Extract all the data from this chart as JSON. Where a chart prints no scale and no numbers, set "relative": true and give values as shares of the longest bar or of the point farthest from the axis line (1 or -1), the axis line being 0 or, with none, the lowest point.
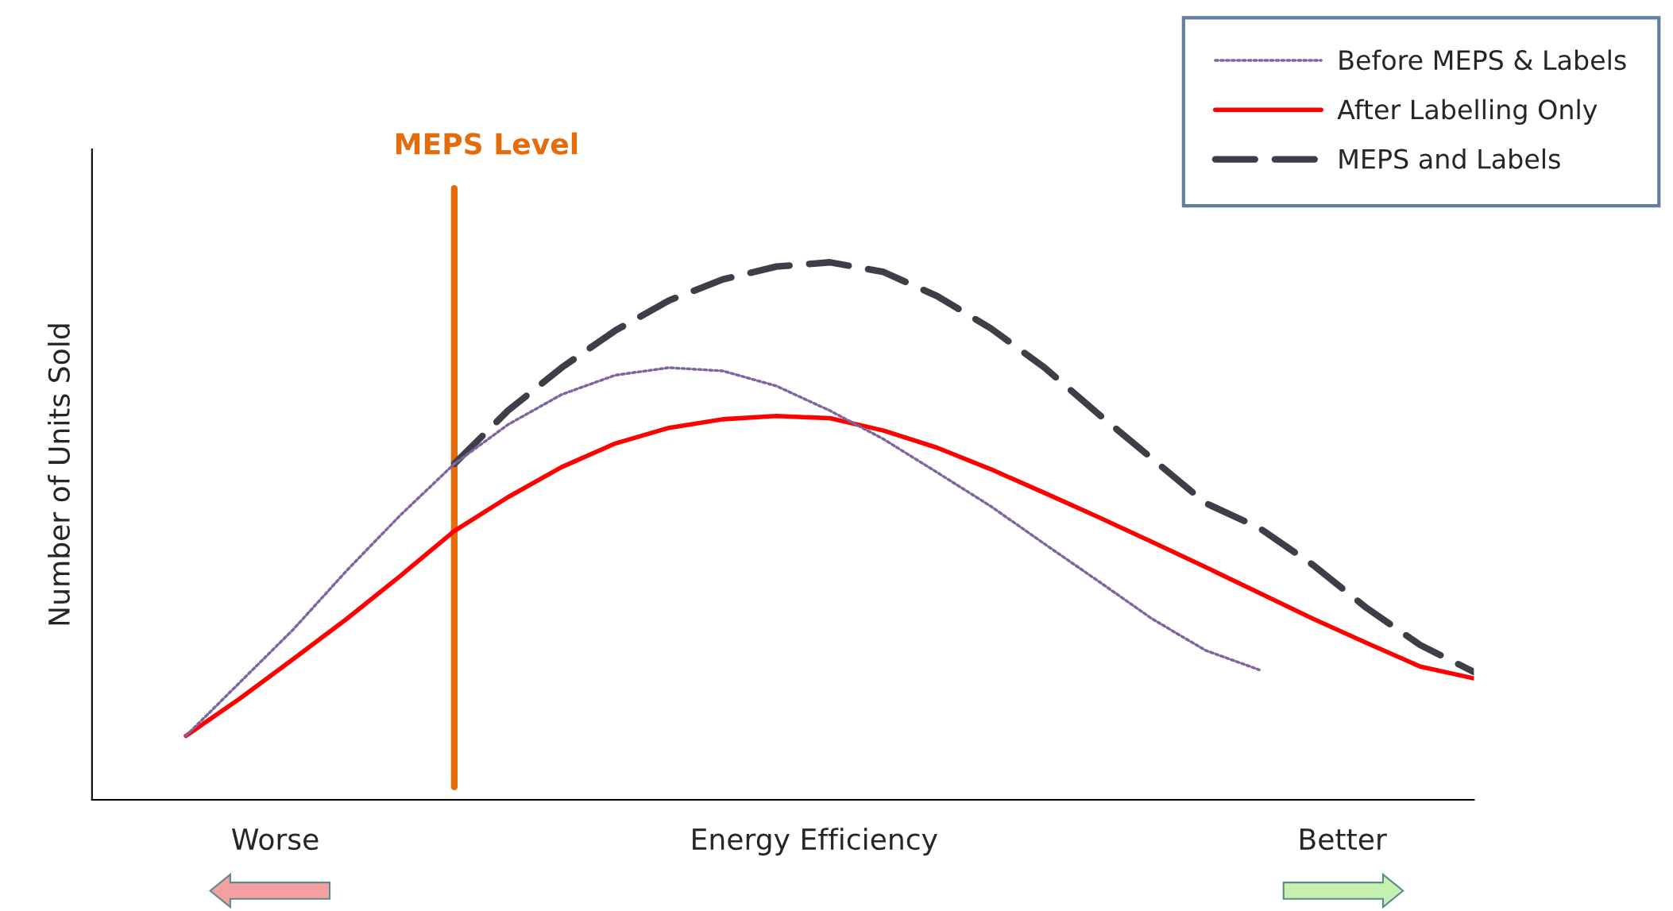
{
  "chart_data": {
    "type": "line",
    "relative": true,
    "xlabel": "Energy Efficiency",
    "ylabel": "Number of Units Sold",
    "categories": [
      null,
      null,
      null,
      null,
      null,
      null,
      null,
      null,
      null,
      null,
      null,
      null,
      null,
      null,
      null,
      null,
      null,
      null,
      null,
      null,
      null,
      null,
      null,
      null,
      null
    ],
    "series": [
      {
        "name": "Before MEPS & Labels",
        "color": "#8064a2",
        "line_style": "dotted",
        "values": [
          0.119,
          0.218,
          0.317,
          0.427,
          0.53,
          0.625,
          0.698,
          0.754,
          0.79,
          0.804,
          0.798,
          0.77,
          0.724,
          0.671,
          0.609,
          0.546,
          0.476,
          0.407,
          0.337,
          0.278,
          0.242,
          null,
          null,
          null,
          null
        ]
      },
      {
        "name": "After Labelling Only",
        "color": "#ff0000",
        "line_style": "solid",
        "values": [
          0.119,
          0.188,
          0.262,
          0.337,
          0.417,
          0.5,
          0.563,
          0.619,
          0.663,
          0.692,
          0.708,
          0.714,
          0.71,
          0.687,
          0.655,
          0.615,
          0.571,
          0.526,
          0.48,
          0.433,
          0.385,
          0.337,
          0.292,
          0.248,
          0.226
        ]
      },
      {
        "name": "MEPS and Labels",
        "color": "#3c3f48",
        "line_style": "dashed",
        "values": [
          null,
          null,
          null,
          null,
          null,
          0.625,
          0.724,
          0.804,
          0.873,
          0.929,
          0.968,
          0.992,
          1,
          0.982,
          0.937,
          0.877,
          0.804,
          0.718,
          0.635,
          0.552,
          0.506,
          0.437,
          0.357,
          0.288,
          0.238
        ]
      }
    ],
    "annotations": [
      "Worse",
      "Better",
      "MEPS Level"
    ],
    "legend": "top right"
  }
}
